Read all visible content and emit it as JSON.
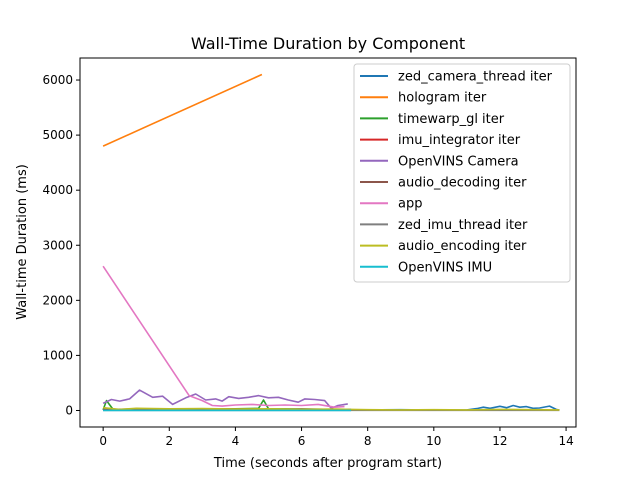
{
  "chart_data": {
    "type": "line",
    "title": "Wall-Time Duration by Component",
    "xlabel": "Time (seconds after program start)",
    "ylabel": "Wall-time Duration (ms)",
    "xlim": [
      -0.7,
      14.3
    ],
    "ylim": [
      -300,
      6400
    ],
    "xticks": [
      0,
      2,
      4,
      6,
      8,
      10,
      12,
      14
    ],
    "yticks": [
      0,
      1000,
      2000,
      3000,
      4000,
      5000,
      6000
    ],
    "grid": false,
    "legend_position": "upper right",
    "series": [
      {
        "name": "zed_camera_thread iter",
        "color": "#1f77b4",
        "points": [
          [
            0,
            5
          ],
          [
            1,
            8
          ],
          [
            2,
            5
          ],
          [
            3,
            10
          ],
          [
            4,
            8
          ],
          [
            5,
            6
          ],
          [
            6,
            8
          ],
          [
            7,
            5
          ],
          [
            8,
            10
          ],
          [
            9,
            15
          ],
          [
            10,
            8
          ],
          [
            11,
            10
          ],
          [
            11.3,
            35
          ],
          [
            11.5,
            60
          ],
          [
            11.7,
            40
          ],
          [
            12,
            75
          ],
          [
            12.2,
            50
          ],
          [
            12.4,
            90
          ],
          [
            12.6,
            60
          ],
          [
            12.8,
            70
          ],
          [
            13,
            40
          ],
          [
            13.2,
            45
          ],
          [
            13.5,
            80
          ],
          [
            13.7,
            20
          ],
          [
            13.8,
            5
          ]
        ]
      },
      {
        "name": "hologram iter",
        "color": "#ff7f0e",
        "points": [
          [
            0,
            4800
          ],
          [
            4.8,
            6100
          ]
        ]
      },
      {
        "name": "timewarp_gl iter",
        "color": "#2ca02c",
        "points": [
          [
            0,
            10
          ],
          [
            0.1,
            180
          ],
          [
            0.3,
            20
          ],
          [
            1,
            15
          ],
          [
            2,
            20
          ],
          [
            3,
            25
          ],
          [
            4,
            30
          ],
          [
            4.7,
            40
          ],
          [
            4.85,
            190
          ],
          [
            5,
            30
          ],
          [
            6,
            25
          ],
          [
            7,
            20
          ],
          [
            7.5,
            15
          ]
        ]
      },
      {
        "name": "imu_integrator iter",
        "color": "#d62728",
        "points": [
          [
            0,
            5
          ],
          [
            2,
            6
          ],
          [
            4,
            8
          ],
          [
            6,
            5
          ],
          [
            7.5,
            6
          ]
        ]
      },
      {
        "name": "OpenVINS Camera",
        "color": "#9467bd",
        "points": [
          [
            0,
            130
          ],
          [
            0.25,
            200
          ],
          [
            0.5,
            170
          ],
          [
            0.8,
            210
          ],
          [
            1.1,
            370
          ],
          [
            1.5,
            240
          ],
          [
            1.8,
            260
          ],
          [
            2.1,
            110
          ],
          [
            2.5,
            230
          ],
          [
            2.8,
            300
          ],
          [
            3.1,
            190
          ],
          [
            3.4,
            210
          ],
          [
            3.6,
            170
          ],
          [
            3.8,
            250
          ],
          [
            4.1,
            220
          ],
          [
            4.4,
            240
          ],
          [
            4.7,
            270
          ],
          [
            5,
            230
          ],
          [
            5.3,
            240
          ],
          [
            5.6,
            190
          ],
          [
            5.9,
            150
          ],
          [
            6.1,
            210
          ],
          [
            6.4,
            200
          ],
          [
            6.7,
            180
          ],
          [
            6.9,
            40
          ],
          [
            7.1,
            90
          ],
          [
            7.4,
            120
          ]
        ]
      },
      {
        "name": "audio_decoding iter",
        "color": "#8c564b",
        "points": [
          [
            0,
            20
          ],
          [
            1,
            25
          ],
          [
            2,
            20
          ],
          [
            3,
            30
          ],
          [
            4,
            25
          ],
          [
            5,
            20
          ],
          [
            6,
            25
          ],
          [
            7,
            20
          ],
          [
            7.5,
            20
          ]
        ]
      },
      {
        "name": "app",
        "color": "#e377c2",
        "points": [
          [
            0,
            2620
          ],
          [
            2.6,
            270
          ],
          [
            3,
            180
          ],
          [
            3.3,
            90
          ],
          [
            3.6,
            80
          ],
          [
            4,
            100
          ],
          [
            4.5,
            110
          ],
          [
            5,
            90
          ],
          [
            5.5,
            100
          ],
          [
            6,
            90
          ],
          [
            6.5,
            110
          ],
          [
            7,
            60
          ],
          [
            7.3,
            70
          ]
        ]
      },
      {
        "name": "zed_imu_thread iter",
        "color": "#7f7f7f",
        "points": [
          [
            0,
            3
          ],
          [
            4,
            3
          ],
          [
            8,
            3
          ],
          [
            12,
            3
          ],
          [
            13.8,
            3
          ]
        ]
      },
      {
        "name": "audio_encoding iter",
        "color": "#bcbd22",
        "points": [
          [
            0,
            50
          ],
          [
            0.5,
            20
          ],
          [
            1,
            40
          ],
          [
            2,
            30
          ],
          [
            3,
            35
          ],
          [
            4,
            25
          ],
          [
            5,
            30
          ],
          [
            6,
            20
          ],
          [
            7,
            25
          ],
          [
            7.5,
            20
          ],
          [
            8,
            15
          ],
          [
            9,
            10
          ],
          [
            10,
            15
          ],
          [
            11,
            10
          ],
          [
            12,
            20
          ],
          [
            13,
            15
          ],
          [
            13.8,
            10
          ]
        ]
      },
      {
        "name": "OpenVINS IMU",
        "color": "#17becf",
        "points": [
          [
            0,
            2
          ],
          [
            4,
            2
          ],
          [
            7.5,
            2
          ]
        ]
      }
    ]
  }
}
